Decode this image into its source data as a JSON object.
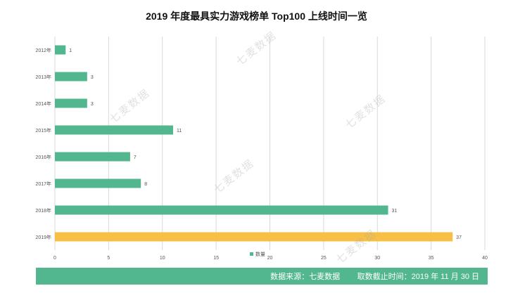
{
  "chart_data": {
    "type": "bar",
    "orientation": "horizontal",
    "title": "2019 年度最具实力游戏榜单 Top100 上线时间一览",
    "categories": [
      "2012年",
      "2013年",
      "2014年",
      "2015年",
      "2016年",
      "2017年",
      "2018年",
      "2019年"
    ],
    "series": [
      {
        "name": "数量",
        "values": [
          1,
          3,
          3,
          11,
          7,
          8,
          31,
          37
        ]
      }
    ],
    "xlim": [
      0,
      40
    ],
    "xticks": [
      0,
      5,
      10,
      15,
      20,
      25,
      30,
      35,
      40
    ],
    "grid": true,
    "legend": "bottom",
    "highlight_category": "2019年",
    "colors": {
      "bar": "#52b68e",
      "highlight": "#f7bf45",
      "grid": "#d9d9d9"
    }
  },
  "footer": {
    "text": "数据来源：七麦数据        取数截止时间：2019 年 11 月 30 日",
    "color": "#52b68e"
  },
  "watermark": {
    "text": "七麦数据"
  }
}
